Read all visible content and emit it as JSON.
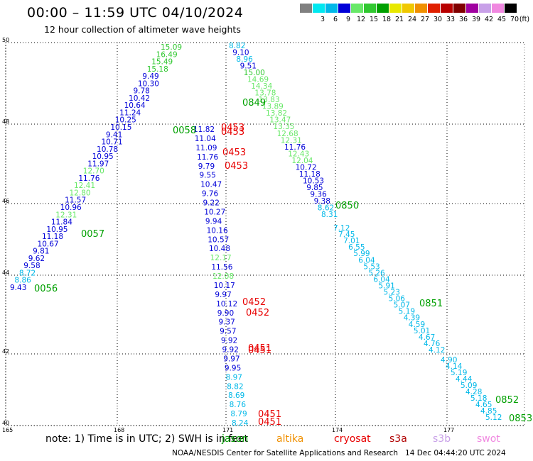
{
  "header": {
    "title": "00:00 – 11:59 UTC 04/10/2024",
    "subtitle": "12 hour collection of altimeter wave heights"
  },
  "legend": {
    "unit": "(ft)",
    "bins": [
      {
        "label": "",
        "color": "#808080"
      },
      {
        "label": "3",
        "color": "#00e8f0"
      },
      {
        "label": "6",
        "color": "#00b8e8"
      },
      {
        "label": "9",
        "color": "#0000d8"
      },
      {
        "label": "12",
        "color": "#68e868"
      },
      {
        "label": "15",
        "color": "#30c830"
      },
      {
        "label": "18",
        "color": "#00a000"
      },
      {
        "label": "21",
        "color": "#e8e800"
      },
      {
        "label": "24",
        "color": "#f0c800"
      },
      {
        "label": "27",
        "color": "#f09000"
      },
      {
        "label": "30",
        "color": "#e02000"
      },
      {
        "label": "33",
        "color": "#b80000"
      },
      {
        "label": "36",
        "color": "#800000"
      },
      {
        "label": "39",
        "color": "#a000a0"
      },
      {
        "label": "42",
        "color": "#c8a0e8"
      },
      {
        "label": "45",
        "color": "#f088e0"
      },
      {
        "label": "70",
        "color": "#000000"
      }
    ]
  },
  "map": {
    "lat_labels": [
      "50",
      "48",
      "46",
      "44",
      "42",
      "40"
    ],
    "lon_labels": [
      "165",
      "168",
      "171",
      "174",
      "177"
    ],
    "grid": "dotted"
  },
  "colors": {
    "wave_3_6": "#00b8e8",
    "wave_6_9": "#00b8e8",
    "wave_9_12": "#0000d8",
    "wave_12_15": "#68e868",
    "wave_15_18": "#30c830",
    "jason": "#00a000",
    "cryosat": "#e80000"
  },
  "passes": [
    {
      "time": "0056",
      "color": "#00a000",
      "values": [
        "9.43",
        "8.86",
        "8.72",
        "9.58",
        "9.62",
        "9.81",
        "10.67",
        "11.18",
        "10.95",
        "11.84",
        "12.31",
        "10.96",
        "11.57",
        "12.80",
        "12.41",
        "11.76",
        "12.70",
        "11.97",
        "10.95",
        "10.78",
        "10.71",
        "9.41",
        "10.15",
        "10.25",
        "11.24",
        "10.64",
        "10.42",
        "9.78",
        "10.30",
        "9.49",
        "15.18",
        "15.49",
        "16.49",
        "15.09"
      ]
    },
    {
      "time": "0057",
      "color": "#00a000",
      "values": []
    },
    {
      "time": "0058",
      "color": "#00a000",
      "values": [
        "11.82",
        "11.04",
        "11.09",
        "11.76",
        "9.79",
        "9.55",
        "10.47",
        "9.76",
        "9.22",
        "10.27",
        "9.94",
        "10.16",
        "10.57",
        "10.48",
        "12.17",
        "11.56",
        "12.08",
        "10.17",
        "9.97",
        "10.12",
        "9.90",
        "9.37",
        "9.57",
        "9.92",
        "9.92",
        "9.97",
        "9.95",
        "8.97",
        "8.82",
        "8.69",
        "8.76",
        "8.79",
        "8.24"
      ]
    },
    {
      "time": "0849",
      "color": "#00a000",
      "values": [
        "8.82",
        "9.10",
        "8.96",
        "9.51",
        "15.00",
        "14.69",
        "14.34",
        "13.78",
        "13.83",
        "13.89",
        "13.82",
        "13.47",
        "13.35",
        "12.68",
        "12.31",
        "11.76",
        "12.43",
        "12.04",
        "10.72",
        "11.18",
        "10.53",
        "9.85",
        "9.36",
        "9.38",
        "8.62",
        "8.31"
      ]
    },
    {
      "time": "0850",
      "color": "#00a000",
      "values": [
        "7.12",
        "7.45",
        "7.01",
        "6.55",
        "5.99",
        "6.04",
        "5.53",
        "5.26",
        "6.04",
        "5.91",
        "5.23",
        "5.06",
        "5.07",
        "5.19",
        "4.39",
        "4.59",
        "5.01",
        "4.67",
        "4.76",
        "4.12"
      ]
    },
    {
      "time": "0851",
      "color": "#00a000",
      "values": [
        "4.90",
        "4.14",
        "5.19",
        "4.44",
        "5.09",
        "4.28",
        "5.18",
        "4.65",
        "4.85",
        "5.12"
      ]
    },
    {
      "time": "0852",
      "color": "#00a000",
      "values": []
    },
    {
      "time": "0853",
      "color": "#00a000",
      "values": []
    },
    {
      "time": "0453",
      "color": "#e80000",
      "values": []
    },
    {
      "time": "0452",
      "color": "#e80000",
      "values": []
    },
    {
      "time": "0451",
      "color": "#e80000",
      "values": []
    }
  ],
  "footer": {
    "note": "note: 1) Time is in UTC; 2) SWH is in feet",
    "missions": [
      {
        "name": "jason",
        "color": "#00a000"
      },
      {
        "name": "altika",
        "color": "#f09000"
      },
      {
        "name": "cryosat",
        "color": "#e80000"
      },
      {
        "name": "s3a",
        "color": "#b00000"
      },
      {
        "name": "s3b",
        "color": "#c8a0e8"
      },
      {
        "name": "swot",
        "color": "#f088e0"
      }
    ],
    "credit": "NOAA/NESDIS Center for Satellite Applications and Research",
    "generated": "14 Dec 04:44:20 UTC 2024"
  }
}
